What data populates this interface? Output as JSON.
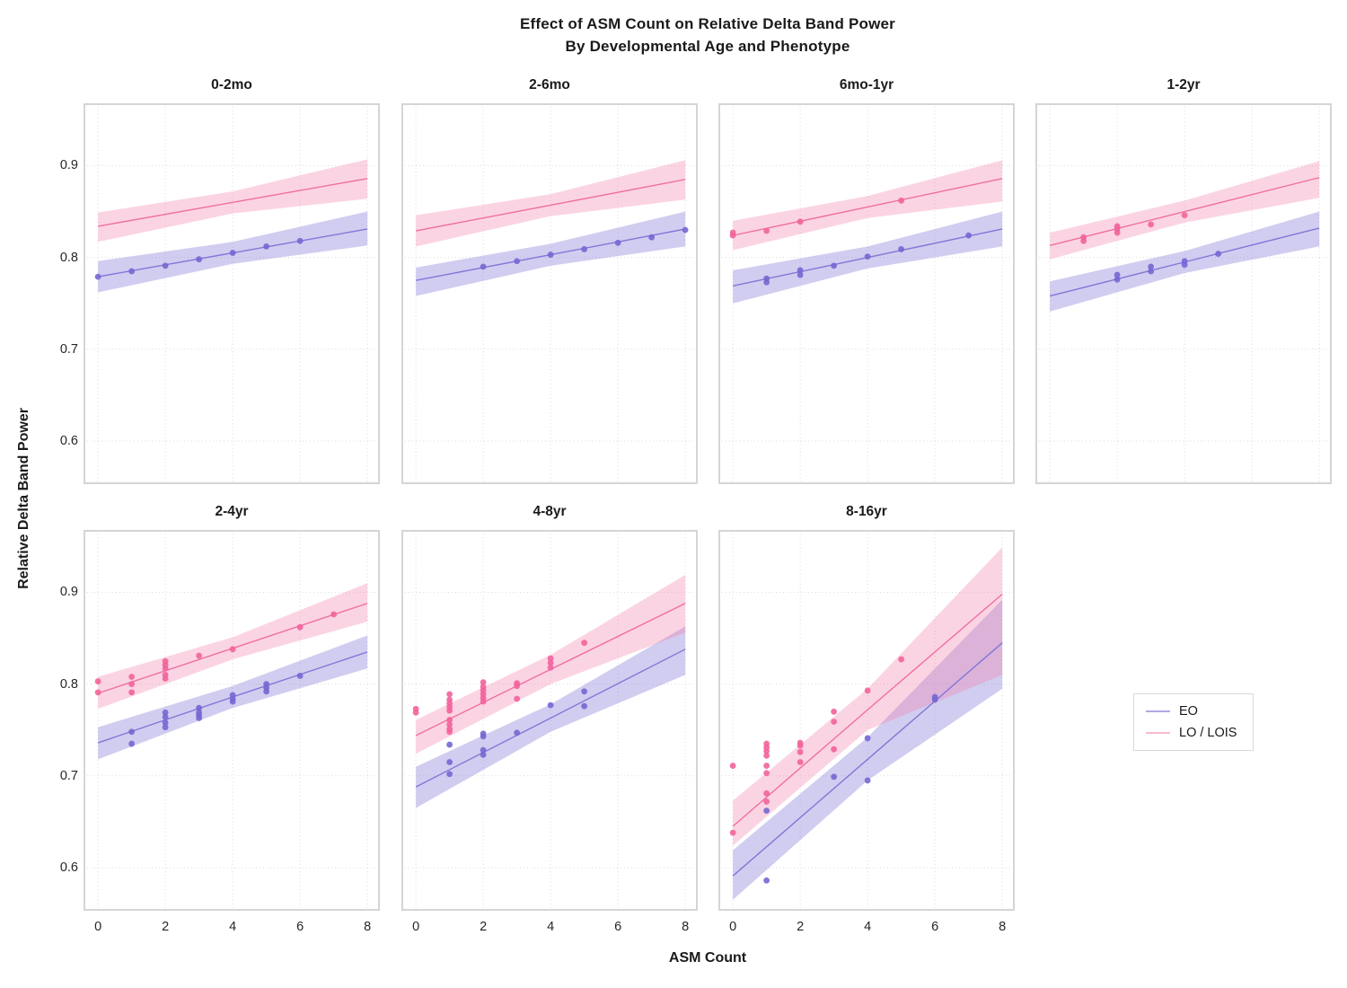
{
  "chart_data": {
    "type": "scatter",
    "title": "Effect of ASM Count on Relative Delta Band Power\nBy Developmental Age and Phenotype",
    "title_line1": "Effect of ASM Count on Relative Delta Band Power",
    "title_line2": "By Developmental Age and Phenotype",
    "xlabel": "ASM Count",
    "ylabel": "Relative Delta Band Power",
    "xlim": [
      -0.43,
      8.37
    ],
    "ylim": [
      0.553,
      0.968
    ],
    "xticks": [
      0,
      2,
      4,
      6,
      8
    ],
    "yticks": [
      0.9,
      0.8,
      0.7,
      0.6
    ],
    "grid": true,
    "trend_x": [
      0,
      4,
      8
    ],
    "legend": {
      "position": "right-middle",
      "entries": [
        {
          "name": "EO",
          "label": "EO",
          "color": "#b0a7e3"
        },
        {
          "name": "LO",
          "label": "LO / LOIS",
          "color": "#f8b9d2"
        }
      ]
    },
    "series_styles": {
      "EO": {
        "line": "#8177d8",
        "point": "#7467d1",
        "band": "rgba(134,123,216,0.38)"
      },
      "LO": {
        "line": "#ef6f9f",
        "point": "#f2639b",
        "band": "rgba(243,122,168,0.32)"
      }
    },
    "facets": [
      {
        "title": "0-2mo",
        "series": [
          {
            "name": "EO",
            "trend_y": [
              0.779,
              0.805,
              0.831
            ],
            "band_lower": [
              0.762,
              0.793,
              0.813
            ],
            "band_upper": [
              0.796,
              0.817,
              0.85
            ],
            "points": [
              [
                0,
                0.779
              ],
              [
                1,
                0.785
              ],
              [
                2,
                0.791
              ],
              [
                3,
                0.798
              ],
              [
                4,
                0.805
              ],
              [
                5,
                0.812
              ],
              [
                6,
                0.818
              ]
            ]
          },
          {
            "name": "LO",
            "trend_y": [
              0.834,
              0.86,
              0.886
            ],
            "band_lower": [
              0.817,
              0.848,
              0.864
            ],
            "band_upper": [
              0.849,
              0.872,
              0.907
            ],
            "points": []
          }
        ]
      },
      {
        "title": "2-6mo",
        "series": [
          {
            "name": "EO",
            "trend_y": [
              0.775,
              0.803,
              0.831
            ],
            "band_lower": [
              0.758,
              0.791,
              0.812
            ],
            "band_upper": [
              0.789,
              0.815,
              0.85
            ],
            "points": [
              [
                2,
                0.79
              ],
              [
                3,
                0.796
              ],
              [
                4,
                0.803
              ],
              [
                5,
                0.809
              ],
              [
                6,
                0.816
              ],
              [
                7,
                0.822
              ],
              [
                8,
                0.83
              ]
            ]
          },
          {
            "name": "LO",
            "trend_y": [
              0.829,
              0.857,
              0.885
            ],
            "band_lower": [
              0.812,
              0.845,
              0.863
            ],
            "band_upper": [
              0.846,
              0.869,
              0.906
            ],
            "points": []
          }
        ]
      },
      {
        "title": "6mo-1yr",
        "series": [
          {
            "name": "EO",
            "trend_y": [
              0.769,
              0.8,
              0.831
            ],
            "band_lower": [
              0.75,
              0.788,
              0.812
            ],
            "band_upper": [
              0.786,
              0.812,
              0.85
            ],
            "points": [
              [
                1,
                0.773
              ],
              [
                1,
                0.777
              ],
              [
                2,
                0.781
              ],
              [
                2,
                0.786
              ],
              [
                3,
                0.791
              ],
              [
                4,
                0.801
              ],
              [
                5,
                0.809
              ],
              [
                7,
                0.824
              ]
            ]
          },
          {
            "name": "LO",
            "trend_y": [
              0.824,
              0.855,
              0.886
            ],
            "band_lower": [
              0.808,
              0.843,
              0.861
            ],
            "band_upper": [
              0.84,
              0.867,
              0.906
            ],
            "points": [
              [
                0,
                0.824
              ],
              [
                0,
                0.827
              ],
              [
                1,
                0.829
              ],
              [
                2,
                0.839
              ],
              [
                5,
                0.862
              ]
            ]
          }
        ]
      },
      {
        "title": "1-2yr",
        "series": [
          {
            "name": "EO",
            "trend_y": [
              0.758,
              0.795,
              0.832
            ],
            "band_lower": [
              0.741,
              0.783,
              0.812
            ],
            "band_upper": [
              0.774,
              0.807,
              0.85
            ],
            "points": [
              [
                2,
                0.776
              ],
              [
                2,
                0.781
              ],
              [
                3,
                0.785
              ],
              [
                3,
                0.79
              ],
              [
                4,
                0.792
              ],
              [
                4,
                0.796
              ],
              [
                5,
                0.804
              ]
            ]
          },
          {
            "name": "LO",
            "trend_y": [
              0.813,
              0.85,
              0.887
            ],
            "band_lower": [
              0.798,
              0.838,
              0.865
            ],
            "band_upper": [
              0.827,
              0.862,
              0.905
            ],
            "points": [
              [
                1,
                0.818
              ],
              [
                1,
                0.822
              ],
              [
                2,
                0.827
              ],
              [
                2,
                0.831
              ],
              [
                2,
                0.834
              ],
              [
                3,
                0.836
              ],
              [
                4,
                0.846
              ]
            ]
          }
        ]
      },
      {
        "title": "2-4yr",
        "series": [
          {
            "name": "EO",
            "trend_y": [
              0.736,
              0.786,
              0.835
            ],
            "band_lower": [
              0.718,
              0.774,
              0.817
            ],
            "band_upper": [
              0.753,
              0.798,
              0.853
            ],
            "points": [
              [
                1,
                0.735
              ],
              [
                1,
                0.748
              ],
              [
                2,
                0.753
              ],
              [
                2,
                0.758
              ],
              [
                2,
                0.764
              ],
              [
                2,
                0.769
              ],
              [
                3,
                0.763
              ],
              [
                3,
                0.766
              ],
              [
                3,
                0.769
              ],
              [
                3,
                0.774
              ],
              [
                4,
                0.781
              ],
              [
                4,
                0.784
              ],
              [
                4,
                0.788
              ],
              [
                5,
                0.792
              ],
              [
                5,
                0.796
              ],
              [
                5,
                0.8
              ],
              [
                6,
                0.809
              ]
            ]
          },
          {
            "name": "LO",
            "trend_y": [
              0.79,
              0.839,
              0.888
            ],
            "band_lower": [
              0.773,
              0.827,
              0.868
            ],
            "band_upper": [
              0.808,
              0.851,
              0.91
            ],
            "points": [
              [
                0,
                0.791
              ],
              [
                0,
                0.803
              ],
              [
                1,
                0.791
              ],
              [
                1,
                0.8
              ],
              [
                1,
                0.808
              ],
              [
                2,
                0.806
              ],
              [
                2,
                0.81
              ],
              [
                2,
                0.817
              ],
              [
                2,
                0.821
              ],
              [
                2,
                0.825
              ],
              [
                3,
                0.831
              ],
              [
                4,
                0.838
              ],
              [
                6,
                0.862
              ],
              [
                7,
                0.876
              ]
            ]
          }
        ]
      },
      {
        "title": "4-8yr",
        "series": [
          {
            "name": "EO",
            "trend_y": [
              0.688,
              0.763,
              0.838
            ],
            "band_lower": [
              0.665,
              0.748,
              0.81
            ],
            "band_upper": [
              0.71,
              0.778,
              0.863
            ],
            "points": [
              [
                1,
                0.702
              ],
              [
                1,
                0.715
              ],
              [
                1,
                0.734
              ],
              [
                2,
                0.723
              ],
              [
                2,
                0.728
              ],
              [
                2,
                0.743
              ],
              [
                2,
                0.746
              ],
              [
                3,
                0.747
              ],
              [
                4,
                0.777
              ],
              [
                5,
                0.776
              ],
              [
                5,
                0.792
              ]
            ]
          },
          {
            "name": "LO",
            "trend_y": [
              0.744,
              0.816,
              0.888
            ],
            "band_lower": [
              0.724,
              0.8,
              0.856
            ],
            "band_upper": [
              0.761,
              0.832,
              0.919
            ],
            "points": [
              [
                0,
                0.769
              ],
              [
                0,
                0.773
              ],
              [
                1,
                0.748
              ],
              [
                1,
                0.751
              ],
              [
                1,
                0.756
              ],
              [
                1,
                0.761
              ],
              [
                1,
                0.771
              ],
              [
                1,
                0.775
              ],
              [
                1,
                0.779
              ],
              [
                1,
                0.783
              ],
              [
                1,
                0.789
              ],
              [
                2,
                0.781
              ],
              [
                2,
                0.785
              ],
              [
                2,
                0.789
              ],
              [
                2,
                0.793
              ],
              [
                2,
                0.797
              ],
              [
                2,
                0.802
              ],
              [
                3,
                0.784
              ],
              [
                3,
                0.798
              ],
              [
                3,
                0.801
              ],
              [
                4,
                0.818
              ],
              [
                4,
                0.823
              ],
              [
                4,
                0.828
              ],
              [
                5,
                0.845
              ]
            ]
          }
        ]
      },
      {
        "title": "8-16yr",
        "series": [
          {
            "name": "EO",
            "trend_y": [
              0.591,
              0.718,
              0.845
            ],
            "band_lower": [
              0.565,
              0.695,
              0.795
            ],
            "band_upper": [
              0.619,
              0.742,
              0.892
            ],
            "points": [
              [
                1,
                0.586
              ],
              [
                1,
                0.662
              ],
              [
                3,
                0.699
              ],
              [
                4,
                0.695
              ],
              [
                4,
                0.741
              ],
              [
                6,
                0.783
              ],
              [
                6,
                0.786
              ]
            ]
          },
          {
            "name": "LO",
            "trend_y": [
              0.645,
              0.772,
              0.898
            ],
            "band_lower": [
              0.624,
              0.75,
              0.81
            ],
            "band_upper": [
              0.673,
              0.795,
              0.949
            ],
            "points": [
              [
                0,
                0.638
              ],
              [
                0,
                0.711
              ],
              [
                1,
                0.672
              ],
              [
                1,
                0.681
              ],
              [
                1,
                0.703
              ],
              [
                1,
                0.711
              ],
              [
                1,
                0.722
              ],
              [
                1,
                0.727
              ],
              [
                1,
                0.731
              ],
              [
                1,
                0.735
              ],
              [
                2,
                0.715
              ],
              [
                2,
                0.726
              ],
              [
                2,
                0.733
              ],
              [
                2,
                0.736
              ],
              [
                3,
                0.729
              ],
              [
                3,
                0.759
              ],
              [
                3,
                0.77
              ],
              [
                4,
                0.793
              ],
              [
                5,
                0.827
              ]
            ]
          }
        ]
      }
    ]
  }
}
